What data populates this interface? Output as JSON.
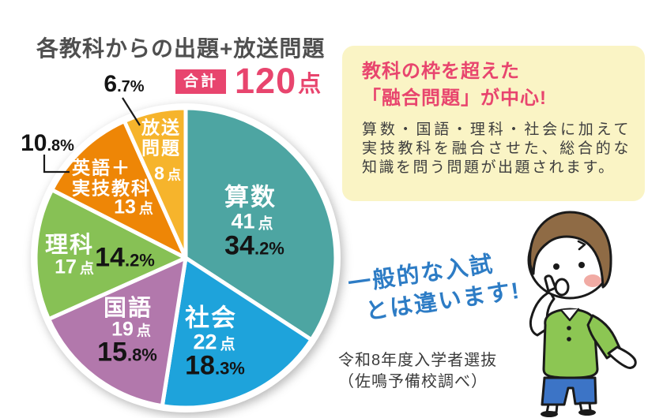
{
  "title": "各教科からの出題+放送問題",
  "total_badge": {
    "label": "合計",
    "value": "120",
    "unit": "点"
  },
  "chart_data": {
    "type": "pie",
    "title": "各教科からの出題+放送問題",
    "total_label": "合計120点",
    "total_points": 120,
    "start_angle_deg": 0,
    "direction": "clockwise",
    "legend_position": "on-slices",
    "slices": [
      {
        "label": "算数",
        "name_lines": [
          "算数"
        ],
        "points": 41,
        "unit": "点",
        "pct": 34.2,
        "pct_main": "34",
        "pct_sub": ".2%",
        "color": "#4da5a2"
      },
      {
        "label": "社会",
        "name_lines": [
          "社会"
        ],
        "points": 22,
        "unit": "点",
        "pct": 18.3,
        "pct_main": "18",
        "pct_sub": ".3%",
        "color": "#1ea3db"
      },
      {
        "label": "国語",
        "name_lines": [
          "国語"
        ],
        "points": 19,
        "unit": "点",
        "pct": 15.8,
        "pct_main": "15",
        "pct_sub": ".8%",
        "color": "#b278ac"
      },
      {
        "label": "理科",
        "name_lines": [
          "理科"
        ],
        "points": 17,
        "unit": "点",
        "pct": 14.2,
        "pct_main": "14",
        "pct_sub": ".2%",
        "color": "#87c155"
      },
      {
        "label": "英語＋実技教科",
        "name_lines": [
          "英語＋",
          "実技教科"
        ],
        "points": 13,
        "unit": "点",
        "pct": 10.8,
        "pct_main": "10",
        "pct_sub": ".8%",
        "color": "#ee8606"
      },
      {
        "label": "放送問題",
        "name_lines": [
          "放送",
          "問題"
        ],
        "points": 8,
        "unit": "点",
        "pct": 6.7,
        "pct_main": "6",
        "pct_sub": ".7%",
        "color": "#f6b42c"
      }
    ]
  },
  "info_box": {
    "heading_line1": "教科の枠を超えた",
    "heading_line2": "「融合問題」が中心!",
    "body": "算数・国語・理科・社会に加えて実技教科を融合させた、総合的な知識を問う問題が出題されます。",
    "bg_color": "#faf4c5"
  },
  "note": {
    "line1": "一般的な入試",
    "line2": "とは違います!",
    "color": "#2d7cc5"
  },
  "source": {
    "line1": "令和8年度入学者選抜",
    "line2": "（佐鳴予備校調べ）"
  },
  "illustration": {
    "name": "thinking-boy",
    "hair_color": "#8f6b45",
    "shirt_color": "#8cc653",
    "shorts_color": "#3c74c6",
    "blush_color": "#f1aba4"
  },
  "colors": {
    "accent_pink": "#e8456e",
    "title_gray": "#4f4f4f",
    "note_blue": "#2d7cc5"
  }
}
